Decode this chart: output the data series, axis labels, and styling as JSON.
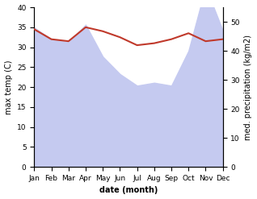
{
  "months": [
    "Jan",
    "Feb",
    "Mar",
    "Apr",
    "May",
    "Jun",
    "Jul",
    "Aug",
    "Sep",
    "Oct",
    "Nov",
    "Dec"
  ],
  "temp_max": [
    34.5,
    32,
    31.5,
    35,
    34,
    32.5,
    30.5,
    31,
    32,
    33.5,
    31.5,
    32
  ],
  "precipitation": [
    48,
    44,
    43,
    49,
    38,
    32,
    28,
    29,
    28,
    40,
    62,
    47
  ],
  "temp_color": "#c0392b",
  "precip_fill_color": "#c5caf0",
  "background_color": "#ffffff",
  "ylim_left": [
    0,
    40
  ],
  "ylim_right": [
    0,
    55
  ],
  "ylabel_left": "max temp (C)",
  "ylabel_right": "med. precipitation (kg/m2)",
  "xlabel": "date (month)",
  "label_fontsize": 7,
  "tick_fontsize": 6.5
}
